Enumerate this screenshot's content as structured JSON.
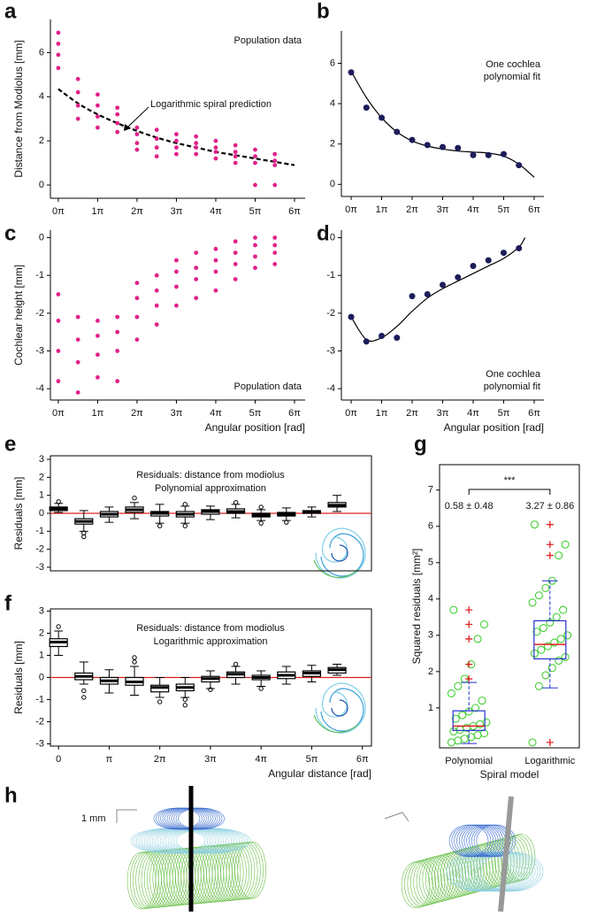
{
  "chart_data": [
    {
      "panel": "a",
      "type": "scatter",
      "ylabel": "Distance from Modiolus [mm]",
      "note": [
        "Population data"
      ],
      "arrow_label": "Logarithmic spiral prediction",
      "x": [
        0,
        0,
        0,
        0,
        0.5,
        0.5,
        0.5,
        0.5,
        1,
        1,
        1,
        1,
        1.5,
        1.5,
        1.5,
        1.5,
        2,
        2,
        2,
        2,
        2.5,
        2.5,
        2.5,
        2.5,
        3,
        3,
        3,
        3,
        3.5,
        3.5,
        3.5,
        3.5,
        4,
        4,
        4,
        4,
        4.5,
        4.5,
        4.5,
        4.5,
        5,
        5,
        5,
        5,
        5.5,
        5.5,
        5.5,
        5.5
      ],
      "values": [
        5.3,
        5.9,
        6.4,
        6.9,
        3.0,
        3.6,
        4.2,
        4.8,
        2.6,
        3.1,
        3.6,
        4.1,
        2.4,
        2.8,
        3.2,
        3.5,
        1.6,
        1.9,
        2.3,
        2.6,
        1.3,
        1.7,
        2.1,
        2.5,
        1.4,
        1.7,
        2.0,
        2.3,
        1.4,
        1.7,
        1.9,
        2.2,
        1.2,
        1.5,
        1.7,
        2.0,
        1.0,
        1.3,
        1.5,
        1.8,
        0.0,
        1.0,
        1.3,
        1.6,
        0.0,
        0.9,
        1.1,
        1.4
      ],
      "color": "#e0218a",
      "line": {
        "x": [
          0,
          0.5,
          1,
          1.5,
          2,
          2.5,
          3,
          3.5,
          4,
          4.5,
          5,
          5.5,
          6
        ],
        "values": [
          4.35,
          3.7,
          3.2,
          2.8,
          2.45,
          2.15,
          1.9,
          1.7,
          1.5,
          1.35,
          1.2,
          1.05,
          0.9
        ],
        "color": "#000000",
        "style": "dashed"
      },
      "xlim": [
        -0.2,
        6.27
      ],
      "ylim": [
        -0.6,
        7.5
      ],
      "xticks": [
        {
          "value": 0,
          "label": "0π"
        },
        {
          "value": 1,
          "label": "1π"
        },
        {
          "value": 2,
          "label": "2π"
        },
        {
          "value": 3,
          "label": "3π"
        },
        {
          "value": 4,
          "label": "4π"
        },
        {
          "value": 5,
          "label": "5π"
        },
        {
          "value": 6,
          "label": "6π"
        }
      ],
      "yticks": [
        0,
        2,
        4,
        6
      ]
    },
    {
      "panel": "b",
      "type": "scatter",
      "note": [
        "One cochlea",
        "polynomial fit"
      ],
      "x": [
        0,
        0.5,
        1,
        1.5,
        2,
        2.5,
        3,
        3.5,
        4,
        4.5,
        5,
        5.5
      ],
      "values": [
        5.55,
        3.8,
        3.3,
        2.6,
        2.2,
        1.95,
        1.85,
        1.8,
        1.45,
        1.45,
        1.5,
        0.95
      ],
      "color": "#1c1c5a",
      "line": {
        "x": [
          0,
          0.5,
          1,
          1.5,
          2,
          2.5,
          3,
          3.5,
          4,
          4.5,
          5,
          5.5,
          6
        ],
        "values": [
          5.6,
          4.3,
          3.3,
          2.6,
          2.15,
          1.9,
          1.75,
          1.65,
          1.6,
          1.55,
          1.4,
          1.0,
          0.35
        ],
        "color": "#000000",
        "style": "solid"
      },
      "xlim": [
        -0.32,
        6.32
      ],
      "ylim": [
        -0.6,
        7.6
      ],
      "xticks": [
        {
          "value": 0,
          "label": "0π"
        },
        {
          "value": 1,
          "label": "1π"
        },
        {
          "value": 2,
          "label": "2π"
        },
        {
          "value": 3,
          "label": "3π"
        },
        {
          "value": 4,
          "label": "4π"
        },
        {
          "value": 5,
          "label": "5π"
        },
        {
          "value": 6,
          "label": "6π"
        }
      ],
      "yticks": [
        0,
        2,
        4,
        6
      ]
    },
    {
      "panel": "c",
      "type": "scatter",
      "ylabel": "Cochlear height [mm]",
      "xlabel": "Angular position [rad]",
      "note": [
        "Population data"
      ],
      "x": [
        0,
        0,
        0,
        0,
        0.5,
        0.5,
        0.5,
        0.5,
        1,
        1,
        1,
        1,
        1.5,
        1.5,
        1.5,
        1.5,
        2,
        2,
        2,
        2,
        2.5,
        2.5,
        2.5,
        2.5,
        3,
        3,
        3,
        3,
        3.5,
        3.5,
        3.5,
        3.5,
        4,
        4,
        4,
        4,
        4.5,
        4.5,
        4.5,
        4.5,
        5,
        5,
        5,
        5,
        5.5,
        5.5,
        5.5,
        5.5
      ],
      "values": [
        -3.8,
        -3.0,
        -2.2,
        -1.5,
        -4.1,
        -3.3,
        -2.7,
        -2.1,
        -3.7,
        -3.1,
        -2.6,
        -2.2,
        -3.8,
        -3.0,
        -2.5,
        -2.1,
        -2.7,
        -2.1,
        -1.6,
        -1.2,
        -2.3,
        -1.8,
        -1.4,
        -1.0,
        -1.8,
        -1.3,
        -0.9,
        -0.6,
        -1.6,
        -1.1,
        -0.8,
        -0.4,
        -1.4,
        -0.9,
        -0.6,
        -0.3,
        -1.1,
        -0.7,
        -0.4,
        -0.1,
        -0.8,
        -0.5,
        -0.2,
        0.0,
        -0.7,
        -0.4,
        -0.2,
        0.0
      ],
      "color": "#e0218a",
      "xlim": [
        -0.2,
        6.27
      ],
      "ylim": [
        -4.3,
        0.2
      ],
      "xticks": [
        {
          "value": 0,
          "label": "0π"
        },
        {
          "value": 1,
          "label": "1π"
        },
        {
          "value": 2,
          "label": "2π"
        },
        {
          "value": 3,
          "label": "3π"
        },
        {
          "value": 4,
          "label": "4π"
        },
        {
          "value": 5,
          "label": "5π"
        },
        {
          "value": 6,
          "label": "6π"
        }
      ],
      "yticks": [
        -4,
        -3,
        -2,
        -1,
        0
      ]
    },
    {
      "panel": "d",
      "type": "scatter",
      "xlabel": "Angular position [rad]",
      "note": [
        "One cochlea",
        "polynomial fit"
      ],
      "x": [
        0,
        0.5,
        1,
        1.5,
        2,
        2.5,
        3,
        3.5,
        4,
        4.5,
        5,
        5.5
      ],
      "values": [
        -2.1,
        -2.75,
        -2.6,
        -2.65,
        -1.55,
        -1.5,
        -1.25,
        -1.05,
        -0.75,
        -0.6,
        -0.4,
        -0.28
      ],
      "color": "#1c1c5a",
      "line": {
        "x": [
          0,
          0.5,
          1,
          1.5,
          2,
          2.5,
          3,
          3.5,
          4,
          4.5,
          5,
          5.5,
          5.7
        ],
        "values": [
          -2.1,
          -2.7,
          -2.65,
          -2.35,
          -1.95,
          -1.6,
          -1.35,
          -1.15,
          -0.95,
          -0.75,
          -0.55,
          -0.25,
          0.0
        ],
        "color": "#000000",
        "style": "solid"
      },
      "xlim": [
        -0.32,
        6.32
      ],
      "ylim": [
        -4.3,
        0.2
      ],
      "xticks": [
        {
          "value": 0,
          "label": "0π"
        },
        {
          "value": 1,
          "label": "1π"
        },
        {
          "value": 2,
          "label": "2π"
        },
        {
          "value": 3,
          "label": "3π"
        },
        {
          "value": 4,
          "label": "4π"
        },
        {
          "value": 5,
          "label": "5π"
        },
        {
          "value": 6,
          "label": "6π"
        }
      ],
      "yticks": [
        -4,
        -3,
        -2,
        -1,
        0
      ]
    },
    {
      "panel": "e",
      "type": "box",
      "ylabel": "Residuals [mm]",
      "title": [
        "Residuals: distance from modiolus",
        "Polynomial approximation"
      ],
      "x": [
        0,
        0.5,
        1,
        1.5,
        2,
        2.5,
        3,
        3.5,
        4,
        4.5,
        5,
        5.5
      ],
      "boxes": [
        {
          "low": 0.05,
          "q1": 0.15,
          "median": 0.25,
          "q3": 0.35,
          "high": 0.55,
          "outliers": [
            0.65
          ]
        },
        {
          "low": -1.0,
          "q1": -0.6,
          "median": -0.45,
          "q3": -0.3,
          "high": 0.15,
          "outliers": [
            -1.1,
            -1.3
          ]
        },
        {
          "low": -0.5,
          "q1": -0.2,
          "median": -0.05,
          "q3": 0.1,
          "high": 0.35,
          "outliers": []
        },
        {
          "low": -0.3,
          "q1": 0.05,
          "median": 0.2,
          "q3": 0.35,
          "high": 0.6,
          "outliers": [
            0.85
          ]
        },
        {
          "low": -0.55,
          "q1": -0.15,
          "median": 0.0,
          "q3": 0.1,
          "high": 0.5,
          "outliers": [
            -0.7
          ]
        },
        {
          "low": -0.55,
          "q1": -0.2,
          "median": -0.05,
          "q3": 0.1,
          "high": 0.4,
          "outliers": [
            0.5,
            -0.7
          ]
        },
        {
          "low": -0.35,
          "q1": -0.05,
          "median": 0.1,
          "q3": 0.2,
          "high": 0.4,
          "outliers": []
        },
        {
          "low": -0.25,
          "q1": 0.0,
          "median": 0.1,
          "q3": 0.25,
          "high": 0.5,
          "outliers": [
            0.6
          ]
        },
        {
          "low": -0.4,
          "q1": -0.2,
          "median": -0.1,
          "q3": 0.0,
          "high": 0.2,
          "outliers": [
            0.35,
            -0.55
          ]
        },
        {
          "low": -0.4,
          "q1": -0.15,
          "median": -0.05,
          "q3": 0.05,
          "high": 0.3,
          "outliers": [
            -0.5
          ]
        },
        {
          "low": -0.2,
          "q1": 0.0,
          "median": 0.1,
          "q3": 0.15,
          "high": 0.35,
          "outliers": []
        },
        {
          "low": 0.1,
          "q1": 0.35,
          "median": 0.45,
          "q3": 0.6,
          "high": 1.0,
          "outliers": []
        }
      ],
      "reference_line": 0,
      "reference_color": "#e02020",
      "box_color": "#000000",
      "median_color": "#000000",
      "xlim": [
        -0.16,
        6.18
      ],
      "ylim": [
        -3.2,
        3.2
      ],
      "yticks": [
        -3,
        -2,
        -1,
        0,
        1,
        2,
        3
      ]
    },
    {
      "panel": "f",
      "type": "box",
      "ylabel": "Residuals [mm]",
      "xlabel": "Angular distance [rad]",
      "title": [
        "Residuals: distance from modiolus",
        "Logarithmic approximation"
      ],
      "x": [
        0,
        0.5,
        1,
        1.5,
        2,
        2.5,
        3,
        3.5,
        4,
        4.5,
        5,
        5.5
      ],
      "boxes": [
        {
          "low": 1.0,
          "q1": 1.4,
          "median": 1.6,
          "q3": 1.75,
          "high": 2.1,
          "outliers": [
            2.3
          ]
        },
        {
          "low": -0.3,
          "q1": -0.1,
          "median": 0.05,
          "q3": 0.2,
          "high": 0.7,
          "outliers": [
            -0.6,
            -0.9
          ]
        },
        {
          "low": -0.7,
          "q1": -0.3,
          "median": -0.15,
          "q3": 0.0,
          "high": 0.35,
          "outliers": []
        },
        {
          "low": -0.8,
          "q1": -0.35,
          "median": -0.2,
          "q3": 0.0,
          "high": 0.5,
          "outliers": [
            0.7,
            0.9
          ]
        },
        {
          "low": -0.9,
          "q1": -0.65,
          "median": -0.45,
          "q3": -0.35,
          "high": 0.0,
          "outliers": [
            -1.1
          ]
        },
        {
          "low": -0.9,
          "q1": -0.6,
          "median": -0.45,
          "q3": -0.3,
          "high": 0.0,
          "outliers": [
            -1.0,
            -1.25
          ]
        },
        {
          "low": -0.5,
          "q1": -0.2,
          "median": -0.05,
          "q3": 0.05,
          "high": 0.3,
          "outliers": [
            -0.55
          ]
        },
        {
          "low": -0.3,
          "q1": 0.0,
          "median": 0.15,
          "q3": 0.25,
          "high": 0.5,
          "outliers": [
            0.6
          ]
        },
        {
          "low": -0.4,
          "q1": -0.1,
          "median": 0.0,
          "q3": 0.1,
          "high": 0.3,
          "outliers": [
            -0.5
          ]
        },
        {
          "low": -0.3,
          "q1": -0.05,
          "median": 0.1,
          "q3": 0.25,
          "high": 0.5,
          "outliers": []
        },
        {
          "low": -0.2,
          "q1": 0.05,
          "median": 0.2,
          "q3": 0.3,
          "high": 0.55,
          "outliers": []
        },
        {
          "low": 0.1,
          "q1": 0.2,
          "median": 0.35,
          "q3": 0.45,
          "high": 0.6,
          "outliers": []
        }
      ],
      "reference_line": 0,
      "reference_color": "#e02020",
      "box_color": "#000000",
      "median_color": "#000000",
      "xlim": [
        -0.16,
        6.18
      ],
      "ylim": [
        -3.1,
        3.1
      ],
      "yticks": [
        -3,
        -2,
        -1,
        0,
        1,
        2,
        3
      ],
      "xticks": [
        0,
        {
          "value": 1,
          "label": "π"
        },
        {
          "value": 2,
          "label": "2π"
        },
        {
          "value": 3,
          "label": "3π"
        },
        {
          "value": 4,
          "label": "4π"
        },
        {
          "value": 5,
          "label": "5π"
        },
        {
          "value": 6,
          "label": "6π"
        }
      ]
    },
    {
      "panel": "g",
      "type": "box",
      "ylabel": "Squared residuals [mm²]",
      "xlabel": "Spiral model",
      "annotation": "***",
      "stats": [
        "0.58 ± 0.48",
        "3.27 ± 0.86"
      ],
      "categories": [
        "Polynomial",
        "Logarithmic"
      ],
      "boxes": [
        {
          "low": 0.02,
          "q1": 0.38,
          "median": 0.5,
          "q3": 0.92,
          "high": 1.7,
          "outliers": [
            1.8,
            2.2,
            2.9,
            3.3,
            3.7
          ],
          "points": [
            0.05,
            0.1,
            0.15,
            0.2,
            0.25,
            0.3,
            0.35,
            0.4,
            0.45,
            0.5,
            0.55,
            0.6,
            0.7,
            0.8,
            0.9,
            1.0,
            1.2,
            1.4,
            1.6,
            1.8,
            2.2,
            2.9,
            3.3,
            3.7
          ]
        },
        {
          "low": 1.55,
          "q1": 2.35,
          "median": 2.75,
          "q3": 3.4,
          "high": 4.5,
          "outliers": [
            0.05,
            5.2,
            5.5,
            6.05
          ],
          "points": [
            0.05,
            1.6,
            1.9,
            2.1,
            2.3,
            2.4,
            2.5,
            2.6,
            2.7,
            2.8,
            2.9,
            3.0,
            3.1,
            3.2,
            3.35,
            3.5,
            3.7,
            3.9,
            4.1,
            4.3,
            4.5,
            5.2,
            5.5,
            6.05
          ]
        }
      ],
      "box_color": "#2233cc",
      "median_color": "#e02020",
      "point_color": "#33cc22",
      "outlier_color": "#e02020",
      "ylim": [
        -0.1,
        7.7
      ],
      "yticks": [
        1,
        2,
        3,
        4,
        5,
        6,
        7
      ]
    }
  ],
  "illustration": {
    "panel": "h",
    "scale_label": "1 mm"
  }
}
